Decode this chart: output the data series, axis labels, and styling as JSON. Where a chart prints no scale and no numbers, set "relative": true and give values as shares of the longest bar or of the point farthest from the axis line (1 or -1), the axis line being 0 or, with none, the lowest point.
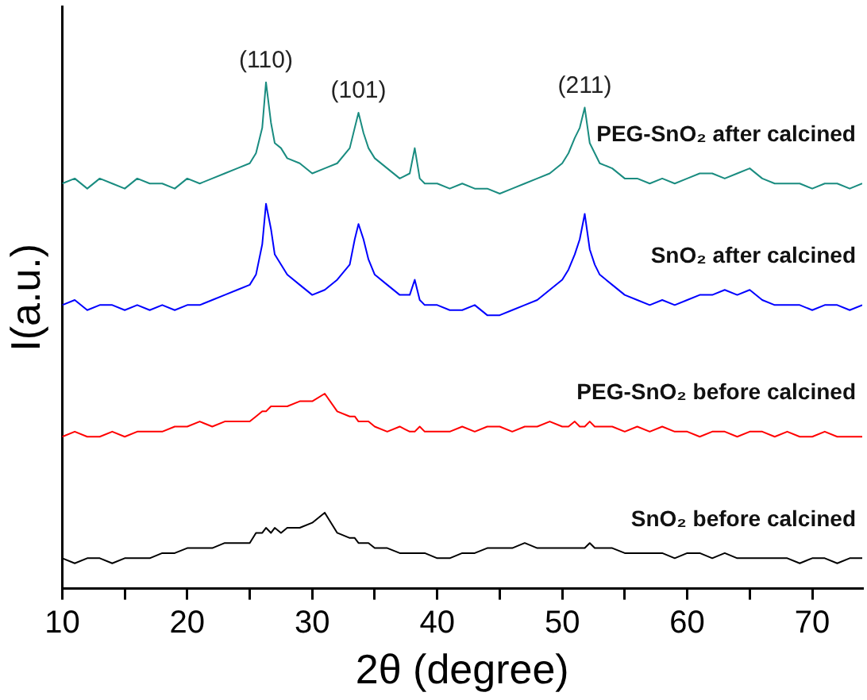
{
  "chart_data": {
    "type": "line",
    "relative": true,
    "xlabel": "2θ (degree)",
    "ylabel": "I(a.u.)",
    "x": [
      10,
      11,
      12,
      13,
      14,
      15,
      16,
      17,
      18,
      19,
      20,
      21,
      22,
      23,
      24,
      25,
      25.5,
      26,
      26.3,
      26.7,
      27,
      27.5,
      28,
      29,
      30,
      31,
      32,
      33,
      33.4,
      33.7,
      34.1,
      34.5,
      35,
      36,
      37,
      37.8,
      38.2,
      38.6,
      39,
      40,
      41,
      42,
      43,
      44,
      45,
      46,
      47,
      48,
      49,
      50,
      50.5,
      51,
      51.4,
      51.8,
      52.2,
      52.6,
      53,
      54,
      55,
      56,
      57,
      58,
      59,
      60,
      61,
      62,
      63,
      64,
      65,
      66,
      67,
      68,
      69,
      70,
      71,
      72,
      73,
      74
    ],
    "xlim": [
      10,
      74
    ],
    "xticks": [
      10,
      {
        "value": 15,
        "label": null
      },
      20,
      {
        "value": 25,
        "label": null
      },
      30,
      {
        "value": 35,
        "label": null
      },
      40,
      {
        "value": 45,
        "label": null
      },
      50,
      {
        "value": 55,
        "label": null
      },
      60,
      {
        "value": 65,
        "label": null
      },
      70
    ],
    "legend": false,
    "marker": "none",
    "line_style": "solid",
    "series": [
      {
        "name": "PEG-SnO₂ after calcined",
        "color": "#1a8c80",
        "values": [
          0.8,
          0.81,
          0.79,
          0.81,
          0.8,
          0.79,
          0.81,
          0.8,
          0.8,
          0.79,
          0.81,
          0.8,
          0.81,
          0.82,
          0.83,
          0.84,
          0.86,
          0.91,
          1.0,
          0.92,
          0.88,
          0.87,
          0.85,
          0.84,
          0.82,
          0.83,
          0.84,
          0.87,
          0.91,
          0.94,
          0.9,
          0.87,
          0.85,
          0.83,
          0.81,
          0.82,
          0.87,
          0.81,
          0.8,
          0.8,
          0.79,
          0.8,
          0.79,
          0.79,
          0.78,
          0.79,
          0.8,
          0.81,
          0.82,
          0.84,
          0.86,
          0.89,
          0.91,
          0.95,
          0.88,
          0.86,
          0.84,
          0.83,
          0.81,
          0.81,
          0.8,
          0.81,
          0.8,
          0.81,
          0.82,
          0.82,
          0.81,
          0.82,
          0.83,
          0.81,
          0.8,
          0.8,
          0.8,
          0.79,
          0.8,
          0.8,
          0.79,
          0.8
        ]
      },
      {
        "name": "SnO₂ after calcined",
        "color": "#0000ff",
        "values": [
          0.56,
          0.57,
          0.55,
          0.56,
          0.56,
          0.55,
          0.56,
          0.55,
          0.56,
          0.55,
          0.56,
          0.56,
          0.57,
          0.58,
          0.59,
          0.6,
          0.62,
          0.68,
          0.76,
          0.71,
          0.66,
          0.64,
          0.62,
          0.6,
          0.58,
          0.59,
          0.61,
          0.64,
          0.69,
          0.72,
          0.69,
          0.65,
          0.62,
          0.6,
          0.58,
          0.58,
          0.61,
          0.57,
          0.56,
          0.56,
          0.55,
          0.55,
          0.56,
          0.54,
          0.54,
          0.55,
          0.56,
          0.57,
          0.59,
          0.61,
          0.63,
          0.66,
          0.69,
          0.74,
          0.67,
          0.64,
          0.62,
          0.6,
          0.58,
          0.57,
          0.56,
          0.57,
          0.56,
          0.57,
          0.58,
          0.58,
          0.59,
          0.58,
          0.59,
          0.57,
          0.56,
          0.56,
          0.56,
          0.55,
          0.56,
          0.56,
          0.55,
          0.56
        ]
      },
      {
        "name": "PEG-SnO₂ before calcined",
        "color": "#ff0000",
        "values": [
          0.3,
          0.31,
          0.3,
          0.3,
          0.31,
          0.3,
          0.31,
          0.31,
          0.31,
          0.32,
          0.32,
          0.33,
          0.32,
          0.33,
          0.33,
          0.33,
          0.34,
          0.35,
          0.35,
          0.36,
          0.36,
          0.36,
          0.36,
          0.37,
          0.37,
          0.385,
          0.35,
          0.34,
          0.34,
          0.33,
          0.33,
          0.33,
          0.32,
          0.31,
          0.32,
          0.31,
          0.31,
          0.32,
          0.31,
          0.31,
          0.31,
          0.32,
          0.31,
          0.32,
          0.32,
          0.31,
          0.32,
          0.32,
          0.33,
          0.32,
          0.32,
          0.33,
          0.32,
          0.32,
          0.33,
          0.32,
          0.32,
          0.32,
          0.31,
          0.32,
          0.31,
          0.32,
          0.31,
          0.31,
          0.3,
          0.31,
          0.31,
          0.3,
          0.31,
          0.31,
          0.3,
          0.31,
          0.3,
          0.3,
          0.31,
          0.3,
          0.3,
          0.3
        ]
      },
      {
        "name": "SnO₂ before calcined",
        "color": "#000000",
        "values": [
          0.06,
          0.05,
          0.06,
          0.06,
          0.05,
          0.06,
          0.06,
          0.06,
          0.07,
          0.07,
          0.08,
          0.08,
          0.08,
          0.09,
          0.09,
          0.09,
          0.11,
          0.11,
          0.12,
          0.11,
          0.12,
          0.11,
          0.12,
          0.12,
          0.13,
          0.15,
          0.11,
          0.1,
          0.1,
          0.09,
          0.09,
          0.09,
          0.08,
          0.08,
          0.07,
          0.07,
          0.07,
          0.07,
          0.07,
          0.06,
          0.06,
          0.07,
          0.07,
          0.08,
          0.08,
          0.08,
          0.09,
          0.08,
          0.08,
          0.08,
          0.08,
          0.08,
          0.08,
          0.08,
          0.09,
          0.08,
          0.08,
          0.08,
          0.07,
          0.07,
          0.07,
          0.07,
          0.06,
          0.07,
          0.07,
          0.06,
          0.07,
          0.06,
          0.06,
          0.06,
          0.06,
          0.06,
          0.05,
          0.06,
          0.06,
          0.05,
          0.06,
          0.06
        ]
      }
    ],
    "annotations": [
      {
        "text": "(110)",
        "x": 26.3,
        "y": 1.0
      },
      {
        "text": "(101)",
        "x": 33.7,
        "y": 0.94
      },
      {
        "text": "(211)",
        "x": 51.8,
        "y": 0.95
      }
    ]
  }
}
